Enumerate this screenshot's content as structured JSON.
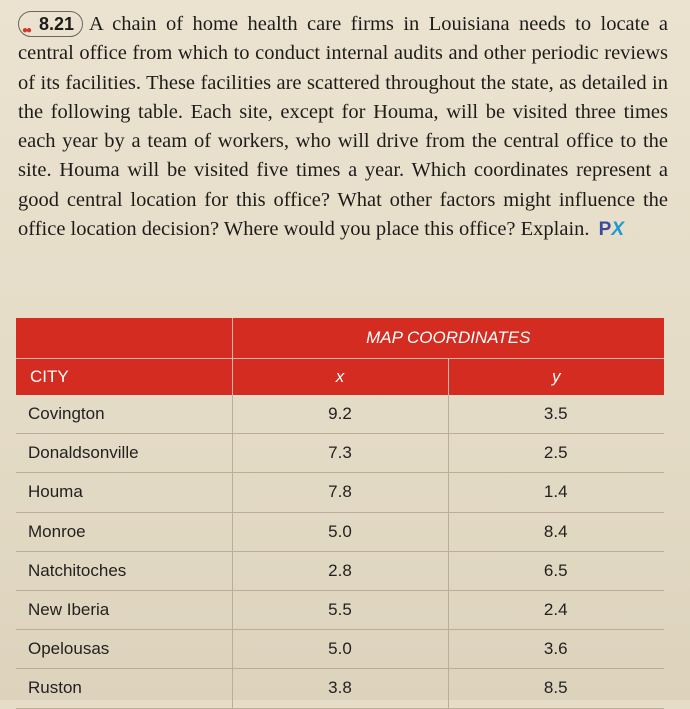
{
  "problem": {
    "number": "8.21",
    "text": "A chain of home health care firms in Louisiana needs to locate a central office from which to conduct internal audits and other periodic reviews of its facilities. These facilities are scattered throughout the state, as detailed in the following table. Each site, except for Houma, will be visited three times each year by a team of workers, who will drive from the central office to the site. Houma will be visited five times a year. Which coordinates represent a good central location for this office? What other factors might influence the office location decision? Where would you place this office? Explain.",
    "logo_p": "P",
    "logo_x": "X"
  },
  "table": {
    "group_header": "MAP COORDINATES",
    "col_city": "CITY",
    "col_x": "x",
    "col_y": "y",
    "rows": [
      {
        "city": "Covington",
        "x": "9.2",
        "y": "3.5"
      },
      {
        "city": "Donaldsonville",
        "x": "7.3",
        "y": "2.5"
      },
      {
        "city": "Houma",
        "x": "7.8",
        "y": "1.4"
      },
      {
        "city": "Monroe",
        "x": "5.0",
        "y": "8.4"
      },
      {
        "city": "Natchitoches",
        "x": "2.8",
        "y": "6.5"
      },
      {
        "city": "New Iberia",
        "x": "5.5",
        "y": "2.4"
      },
      {
        "city": "Opelousas",
        "x": "5.0",
        "y": "3.6"
      },
      {
        "city": "Ruston",
        "x": "3.8",
        "y": "8.5"
      }
    ]
  },
  "colors": {
    "header_red": "#d42c20",
    "page_background": "#e6ddc9"
  }
}
